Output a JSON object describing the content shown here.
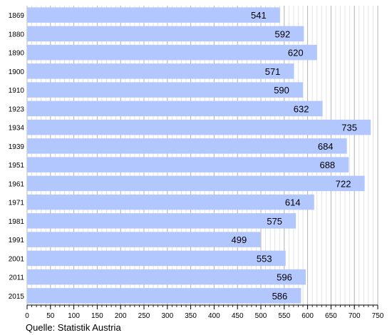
{
  "chart_data": {
    "type": "bar",
    "orientation": "horizontal",
    "title": "",
    "xlabel": "",
    "ylabel": "",
    "categories": [
      "1869",
      "1880",
      "1890",
      "1900",
      "1910",
      "1923",
      "1934",
      "1939",
      "1951",
      "1961",
      "1971",
      "1981",
      "1991",
      "2001",
      "2011",
      "2015"
    ],
    "values": [
      541,
      592,
      620,
      571,
      590,
      632,
      735,
      684,
      688,
      722,
      614,
      575,
      499,
      553,
      596,
      586
    ],
    "xlim": [
      0,
      750
    ],
    "x_ticks": [
      0,
      50,
      100,
      150,
      200,
      250,
      300,
      350,
      400,
      450,
      500,
      550,
      600,
      650,
      700,
      750
    ],
    "grid": "vertical",
    "bar_color": "#b3c7ff",
    "data_labels": "inside-end"
  },
  "source": "Quelle: Statistik Austria"
}
